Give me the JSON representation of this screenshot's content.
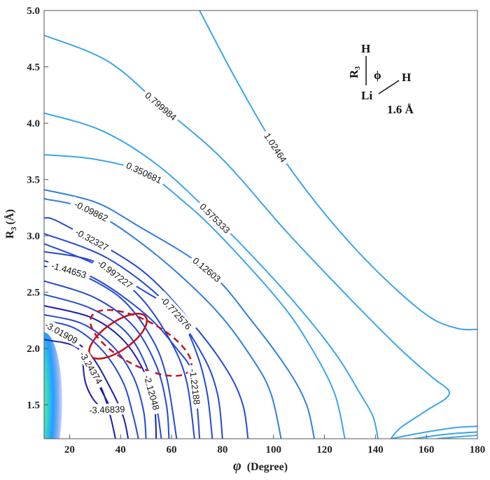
{
  "chart_data": {
    "type": "contour",
    "xlabel_symbol": "φ",
    "xlabel": "(Degree)",
    "ylabel_main": "R",
    "ylabel_sub": "3",
    "ylabel_unit": "(Å)",
    "xlim": [
      10,
      180
    ],
    "ylim": [
      1.2,
      5.0
    ],
    "xticks": [
      "20",
      "40",
      "60",
      "80",
      "100",
      "120",
      "140",
      "160",
      "180"
    ],
    "xtick_values": [
      20,
      40,
      60,
      80,
      100,
      120,
      140,
      160,
      180
    ],
    "yticks": [
      "1.5",
      "2.0",
      "2.5",
      "3.0",
      "3.5",
      "4.0",
      "4.5",
      "5.0"
    ],
    "ytick_values": [
      1.5,
      2.0,
      2.5,
      3.0,
      3.5,
      4.0,
      4.5,
      5.0
    ],
    "grid": false,
    "colors": {
      "outer": "#3aa6ea",
      "mid": "#2f7fe0",
      "inner": "#2448d8",
      "deep": "#1a1ab8",
      "annotation": "#c0141e"
    },
    "heatmap_region": {
      "phi": 10,
      "R_center": 1.6,
      "colors": [
        "#c00000",
        "#ff3000",
        "#ffd000",
        "#40e0c0",
        "#20a0ff",
        "#2050e0"
      ]
    },
    "contours": [
      {
        "level": "1.02464",
        "labeled": true,
        "label_at": [
          101,
          3.78
        ],
        "points": [
          [
            71,
            5.0
          ],
          [
            85,
            4.4
          ],
          [
            101,
            3.78
          ],
          [
            120,
            3.2
          ],
          [
            140,
            2.7
          ],
          [
            160,
            2.3
          ],
          [
            172,
            2.18
          ],
          [
            180,
            2.17
          ]
        ]
      },
      {
        "level": "0.799984",
        "labeled": true,
        "label_at": [
          56,
          4.15
        ],
        "points": [
          [
            10,
            4.78
          ],
          [
            35,
            4.55
          ],
          [
            56,
            4.15
          ],
          [
            80,
            3.68
          ],
          [
            105,
            3.04
          ],
          [
            131,
            2.42
          ],
          [
            150,
            1.99
          ],
          [
            162,
            1.75
          ],
          [
            169,
            1.6
          ],
          [
            160,
            1.45
          ],
          [
            150,
            1.3
          ],
          [
            146,
            1.2
          ]
        ]
      },
      {
        "level": "0.575333",
        "labeled": true,
        "label_at": [
          77,
          3.16
        ],
        "points": [
          [
            10,
            4.09
          ],
          [
            33,
            3.93
          ],
          [
            55,
            3.62
          ],
          [
            77,
            3.16
          ],
          [
            100,
            2.62
          ],
          [
            116,
            2.2
          ],
          [
            126,
            1.9
          ],
          [
            134,
            1.6
          ],
          [
            139,
            1.4
          ],
          [
            141,
            1.2
          ]
        ]
      },
      {
        "level": "0.350681",
        "labeled": true,
        "label_at": [
          49.5,
          3.56
        ],
        "points": [
          [
            10,
            3.72
          ],
          [
            30,
            3.68
          ],
          [
            49.5,
            3.56
          ],
          [
            65,
            3.3
          ],
          [
            80,
            2.98
          ],
          [
            103,
            2.4
          ],
          [
            115,
            2.0
          ],
          [
            124,
            1.6
          ],
          [
            128,
            1.2
          ]
        ]
      },
      {
        "level": "0.12603",
        "labeled": true,
        "label_at": [
          74,
          2.7
        ],
        "points": [
          [
            10,
            3.41
          ],
          [
            30,
            3.3
          ],
          [
            46,
            3.1
          ],
          [
            74,
            2.7
          ],
          [
            92,
            2.23
          ],
          [
            106,
            1.8
          ],
          [
            113,
            1.5
          ],
          [
            116,
            1.2
          ]
        ]
      },
      {
        "level": "-0.09862",
        "labeled": true,
        "label_at": [
          28.7,
          3.22
        ],
        "points": [
          [
            10,
            3.33
          ],
          [
            28.7,
            3.22
          ],
          [
            53,
            2.85
          ],
          [
            77,
            2.35
          ],
          [
            92,
            1.9
          ],
          [
            99,
            1.6
          ],
          [
            103,
            1.2
          ]
        ]
      },
      {
        "level": "-0.32327",
        "labeled": true,
        "label_at": [
          17,
          3.11
        ],
        "points": [
          [
            10,
            3.16
          ],
          [
            17,
            3.11
          ],
          [
            48,
            2.7
          ],
          [
            69,
            2.2
          ],
          [
            82,
            1.8
          ],
          [
            88,
            1.5
          ],
          [
            90,
            1.2
          ]
        ]
      },
      {
        "level": "",
        "labeled": false,
        "points": [
          [
            10,
            3.02
          ],
          [
            35,
            2.8
          ],
          [
            58,
            2.4
          ],
          [
            72,
            1.95
          ],
          [
            78,
            1.6
          ],
          [
            80,
            1.2
          ]
        ]
      },
      {
        "level": "-0.772576",
        "labeled": true,
        "label_at": [
          62.5,
          2.33
        ],
        "points": [
          [
            10,
            2.93
          ],
          [
            30,
            2.75
          ],
          [
            50,
            2.5
          ],
          [
            62.5,
            2.3
          ],
          [
            70,
            1.95
          ],
          [
            74,
            1.6
          ],
          [
            76,
            1.2
          ]
        ]
      },
      {
        "level": "-0.997227",
        "labeled": true,
        "label_at": [
          31,
          2.79
        ],
        "points": [
          [
            10,
            2.86
          ],
          [
            31,
            2.76
          ],
          [
            48,
            2.45
          ],
          [
            60,
            2.05
          ],
          [
            66,
            1.7
          ],
          [
            69,
            1.2
          ]
        ]
      },
      {
        "level": "-1.22188",
        "labeled": true,
        "label_at": [
          69.5,
          1.66
        ],
        "points": [
          [
            10,
            2.78
          ],
          [
            30,
            2.62
          ],
          [
            50,
            2.3
          ],
          [
            62,
            2.0
          ],
          [
            68,
            1.8
          ],
          [
            70,
            1.5
          ],
          [
            71,
            1.2
          ]
        ]
      },
      {
        "level": "-1.44653",
        "labeled": true,
        "label_at": [
          22,
          2.7
        ],
        "points": [
          [
            10,
            2.73
          ],
          [
            22,
            2.68
          ],
          [
            40,
            2.45
          ],
          [
            52,
            2.1
          ],
          [
            58,
            1.75
          ],
          [
            62,
            1.2
          ]
        ]
      },
      {
        "level": "",
        "labeled": false,
        "points": [
          [
            10,
            2.6
          ],
          [
            30,
            2.45
          ],
          [
            45,
            2.2
          ],
          [
            54,
            1.85
          ],
          [
            58,
            1.5
          ],
          [
            59,
            1.2
          ]
        ]
      },
      {
        "level": "",
        "labeled": false,
        "points": [
          [
            10,
            2.48
          ],
          [
            28,
            2.36
          ],
          [
            42,
            2.15
          ],
          [
            50,
            1.85
          ],
          [
            54,
            1.5
          ],
          [
            56,
            1.2
          ]
        ]
      },
      {
        "level": "-2.12048",
        "labeled": true,
        "label_at": [
          53,
          1.62
        ],
        "points": [
          [
            10,
            2.38
          ],
          [
            28,
            2.28
          ],
          [
            40,
            2.1
          ],
          [
            48,
            1.85
          ],
          [
            53,
            1.55
          ],
          [
            54,
            1.2
          ]
        ]
      },
      {
        "level": "",
        "labeled": false,
        "points": [
          [
            10,
            2.3
          ],
          [
            25,
            2.22
          ],
          [
            37,
            2.02
          ],
          [
            45,
            1.75
          ],
          [
            49,
            1.45
          ],
          [
            50,
            1.2
          ]
        ]
      },
      {
        "level": "",
        "labeled": false,
        "points": [
          [
            10,
            2.25
          ],
          [
            22,
            2.18
          ],
          [
            33,
            1.98
          ],
          [
            41,
            1.7
          ],
          [
            45,
            1.4
          ],
          [
            47,
            1.2
          ]
        ]
      },
      {
        "level": "-3.01909",
        "labeled": true,
        "label_at": [
          17,
          2.14
        ],
        "points": [
          [
            10,
            2.19
          ],
          [
            17,
            2.14
          ],
          [
            28,
            1.95
          ],
          [
            36,
            1.65
          ],
          [
            41,
            1.4
          ],
          [
            43,
            1.2
          ]
        ]
      },
      {
        "level": "-3.24374",
        "labeled": true,
        "label_at": [
          22,
          2.02
        ],
        "points": [
          [
            10,
            2.08
          ],
          [
            22,
            2.02
          ],
          [
            28,
            1.85
          ],
          [
            33,
            1.62
          ],
          [
            36,
            1.4
          ],
          [
            38,
            1.2
          ]
        ]
      },
      {
        "level": "-3.46839",
        "labeled": true,
        "closed": true,
        "label_at": [
          28.7,
          1.8
        ],
        "points": [
          [
            25,
            1.96
          ],
          [
            28.7,
            1.8
          ],
          [
            32,
            1.65
          ],
          [
            35,
            1.52
          ],
          [
            36,
            1.47
          ],
          [
            33,
            1.47
          ],
          [
            29,
            1.56
          ],
          [
            26,
            1.72
          ],
          [
            25,
            1.96
          ]
        ]
      },
      {
        "level": "",
        "labeled": false,
        "points": [
          [
            146,
            1.2
          ],
          [
            160,
            1.26
          ],
          [
            172,
            1.3
          ],
          [
            180,
            1.31
          ]
        ]
      },
      {
        "level": "",
        "labeled": false,
        "points": [
          [
            155,
            1.2
          ],
          [
            168,
            1.24
          ],
          [
            180,
            1.26
          ]
        ]
      },
      {
        "level": "",
        "labeled": false,
        "points": [
          [
            164,
            1.2
          ],
          [
            174,
            1.22
          ],
          [
            180,
            1.23
          ]
        ]
      }
    ],
    "annotations": [
      {
        "shape": "ellipse",
        "style": "solid",
        "center": [
          39,
          2.11
        ],
        "radii_deg_R": [
          5.5,
          0.3
        ],
        "rotation": -35
      },
      {
        "shape": "ellipse",
        "style": "dashed",
        "center": [
          48,
          2.05
        ],
        "radii_deg_R": [
          22,
          0.2
        ],
        "rotation": 28
      }
    ]
  },
  "inset": {
    "top_atom": "H",
    "bond_label_main": "R",
    "bond_label_sub": "3",
    "angle_label": "ϕ",
    "center_atom": "Li",
    "side_atom": "H",
    "fixed_bond": "1.6 Å"
  }
}
